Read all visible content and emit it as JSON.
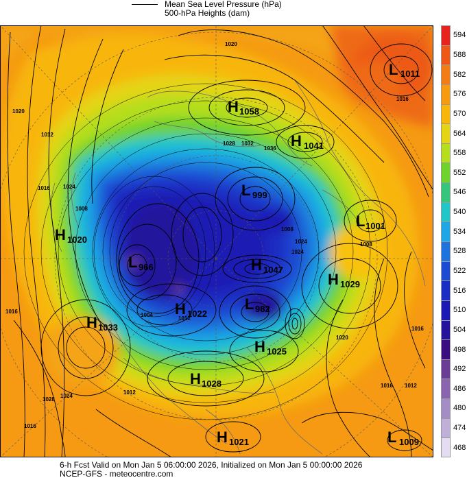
{
  "legend": {
    "line1": "Mean Sea Level Pressure (hPa)",
    "line2": "500-hPa Heights (dam)"
  },
  "footer": {
    "line1": "6-h Fcst Valid on Mon Jan  5 06:00:00 2026, Initialized on Mon Jan  5 00:00:00 2026",
    "line2": "NCEP-GFS  - meteocentre.com"
  },
  "colorbar": {
    "levels": [
      "594",
      "588",
      "582",
      "576",
      "570",
      "564",
      "558",
      "552",
      "546",
      "540",
      "534",
      "528",
      "522",
      "516",
      "510",
      "504",
      "498",
      "492",
      "486",
      "480",
      "474",
      "468"
    ],
    "colors": [
      "#e8221c",
      "#ee5716",
      "#f47c14",
      "#f69a10",
      "#f8b60a",
      "#e4d414",
      "#b5de1e",
      "#6fd22d",
      "#34c67a",
      "#22c6c8",
      "#1fa6e4",
      "#1e74dc",
      "#1c4ad2",
      "#1a2ec4",
      "#1c1ab4",
      "#24129c",
      "#3a0d80",
      "#6a3c96",
      "#8a64b0",
      "#a48cc4",
      "#c0b0d8",
      "#e4dcf0"
    ]
  },
  "centers": [
    {
      "type": "L",
      "value": "1011"
    },
    {
      "type": "H",
      "value": "1058"
    },
    {
      "type": "H",
      "value": "1041"
    },
    {
      "type": "L",
      "value": "999"
    },
    {
      "type": "H",
      "value": "1020"
    },
    {
      "type": "L",
      "value": "1001"
    },
    {
      "type": "H",
      "value": "1047"
    },
    {
      "type": "H",
      "value": "1029"
    },
    {
      "type": "L",
      "value": "966"
    },
    {
      "type": "H",
      "value": "1022"
    },
    {
      "type": "L",
      "value": "982"
    },
    {
      "type": "H",
      "value": "1033"
    },
    {
      "type": "H",
      "value": "1025"
    },
    {
      "type": "H",
      "value": "1028"
    },
    {
      "type": "H",
      "value": "1021"
    },
    {
      "type": "L",
      "value": "1009"
    }
  ],
  "isobar_labels": [
    "1020",
    "1012",
    "1016",
    "1024",
    "1008",
    "1016",
    "1024",
    "1028",
    "1016",
    "1012",
    "1024",
    "1020",
    "1008",
    "1016",
    "1028",
    "1020",
    "1016",
    "1012",
    "1016",
    "1004",
    "1012",
    "1008",
    "1036",
    "1032",
    "1024"
  ]
}
